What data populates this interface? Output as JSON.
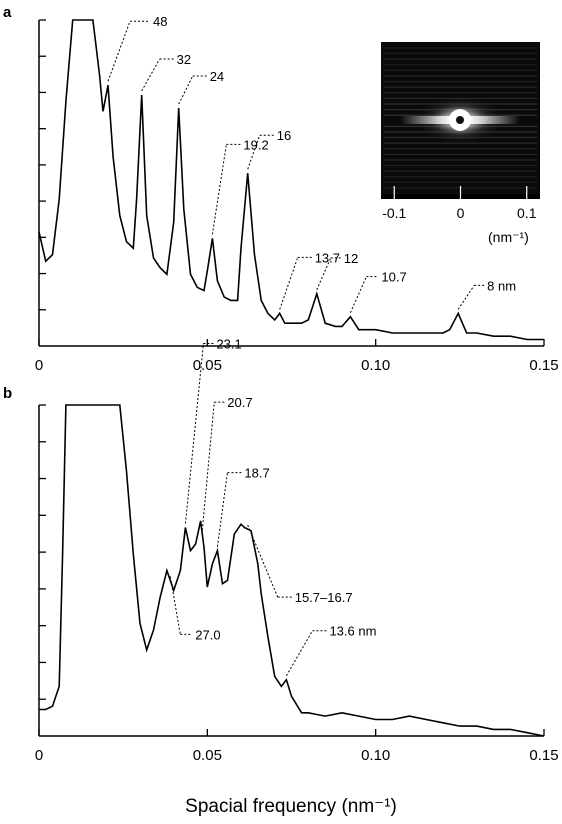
{
  "chart_data": [
    {
      "type": "line",
      "panel_label": "a",
      "x_ticks": [
        "0",
        "0.05",
        "0.10",
        "0.15"
      ],
      "xlim": [
        0,
        0.15
      ],
      "ylim": [
        0,
        1
      ],
      "y_tick_labels": "none",
      "x": [
        0,
        0.002,
        0.004,
        0.006,
        0.008,
        0.01,
        0.012,
        0.014,
        0.016,
        0.018,
        0.019,
        0.0205,
        0.022,
        0.024,
        0.026,
        0.028,
        0.029,
        0.0305,
        0.032,
        0.034,
        0.036,
        0.038,
        0.04,
        0.0415,
        0.043,
        0.045,
        0.047,
        0.049,
        0.05,
        0.0515,
        0.053,
        0.055,
        0.057,
        0.059,
        0.06,
        0.062,
        0.064,
        0.066,
        0.068,
        0.07,
        0.0715,
        0.073,
        0.075,
        0.078,
        0.08,
        0.0825,
        0.085,
        0.088,
        0.09,
        0.0925,
        0.095,
        0.1,
        0.105,
        0.11,
        0.115,
        0.12,
        0.122,
        0.1245,
        0.127,
        0.13,
        0.135,
        0.14,
        0.145,
        0.15
      ],
      "series": [
        {
          "values": [
            0.35,
            0.26,
            0.28,
            0.45,
            0.75,
            1.0,
            1.0,
            1.0,
            1.0,
            0.83,
            0.72,
            0.8,
            0.58,
            0.4,
            0.32,
            0.3,
            0.45,
            0.77,
            0.4,
            0.27,
            0.24,
            0.22,
            0.38,
            0.73,
            0.42,
            0.22,
            0.18,
            0.17,
            0.23,
            0.33,
            0.2,
            0.15,
            0.14,
            0.14,
            0.3,
            0.53,
            0.28,
            0.14,
            0.1,
            0.08,
            0.1,
            0.07,
            0.07,
            0.07,
            0.08,
            0.16,
            0.07,
            0.06,
            0.06,
            0.09,
            0.05,
            0.05,
            0.04,
            0.04,
            0.04,
            0.04,
            0.05,
            0.1,
            0.04,
            0.04,
            0.03,
            0.03,
            0.02,
            0.02
          ]
        }
      ],
      "annotations": [
        {
          "text": "48",
          "x": 0.0205
        },
        {
          "text": "32",
          "x": 0.0305
        },
        {
          "text": "24",
          "x": 0.0415
        },
        {
          "text": "19.2",
          "x": 0.0515
        },
        {
          "text": "16",
          "x": 0.062
        },
        {
          "text": "13.7",
          "x": 0.0715
        },
        {
          "text": "12",
          "x": 0.0825
        },
        {
          "text": "10.7",
          "x": 0.0925
        },
        {
          "text": "8 nm",
          "x": 0.1245
        }
      ],
      "inset": {
        "description": "diffraction pattern",
        "x_ticks": [
          "-0.1",
          "0",
          "0.1"
        ],
        "xlim": [
          -0.12,
          0.12
        ],
        "unit_label": "(nm⁻¹)"
      }
    },
    {
      "type": "line",
      "panel_label": "b",
      "x_ticks": [
        "0",
        "0.05",
        "0.10",
        "0.15"
      ],
      "xlim": [
        0,
        0.15
      ],
      "ylim": [
        0,
        1
      ],
      "y_tick_labels": "none",
      "x": [
        0,
        0.002,
        0.004,
        0.006,
        0.007,
        0.008,
        0.01,
        0.02,
        0.022,
        0.024,
        0.026,
        0.028,
        0.03,
        0.032,
        0.034,
        0.036,
        0.038,
        0.04,
        0.042,
        0.0435,
        0.045,
        0.0465,
        0.048,
        0.049,
        0.05,
        0.0515,
        0.053,
        0.0545,
        0.056,
        0.058,
        0.06,
        0.061,
        0.063,
        0.065,
        0.066,
        0.068,
        0.07,
        0.072,
        0.0735,
        0.075,
        0.078,
        0.08,
        0.085,
        0.09,
        0.095,
        0.1,
        0.105,
        0.11,
        0.115,
        0.12,
        0.125,
        0.13,
        0.135,
        0.14,
        0.145,
        0.15
      ],
      "series": [
        {
          "values": [
            0.08,
            0.08,
            0.09,
            0.15,
            0.55,
            1.0,
            1.0,
            1.0,
            1.0,
            1.0,
            0.8,
            0.55,
            0.34,
            0.26,
            0.32,
            0.42,
            0.5,
            0.44,
            0.5,
            0.63,
            0.56,
            0.58,
            0.65,
            0.57,
            0.45,
            0.52,
            0.56,
            0.46,
            0.47,
            0.61,
            0.64,
            0.63,
            0.62,
            0.52,
            0.43,
            0.3,
            0.18,
            0.15,
            0.17,
            0.12,
            0.07,
            0.07,
            0.06,
            0.07,
            0.06,
            0.05,
            0.05,
            0.06,
            0.05,
            0.04,
            0.03,
            0.03,
            0.02,
            0.02,
            0.01,
            0.0
          ]
        }
      ],
      "annotations": [
        {
          "text": "23.1",
          "x": 0.0435
        },
        {
          "text": "20.7",
          "x": 0.0485
        },
        {
          "text": "18.7",
          "x": 0.053
        },
        {
          "text": "15.7–16.7",
          "x": 0.062
        },
        {
          "text": "27.0",
          "x": 0.039
        },
        {
          "text": "13.6 nm",
          "x": 0.0735
        }
      ]
    }
  ],
  "shared_xlabel": "Spacial frequency (nm⁻¹)",
  "colors": {
    "line": "#000000",
    "background": "#ffffff",
    "inset_background": "#0a0a0a"
  }
}
